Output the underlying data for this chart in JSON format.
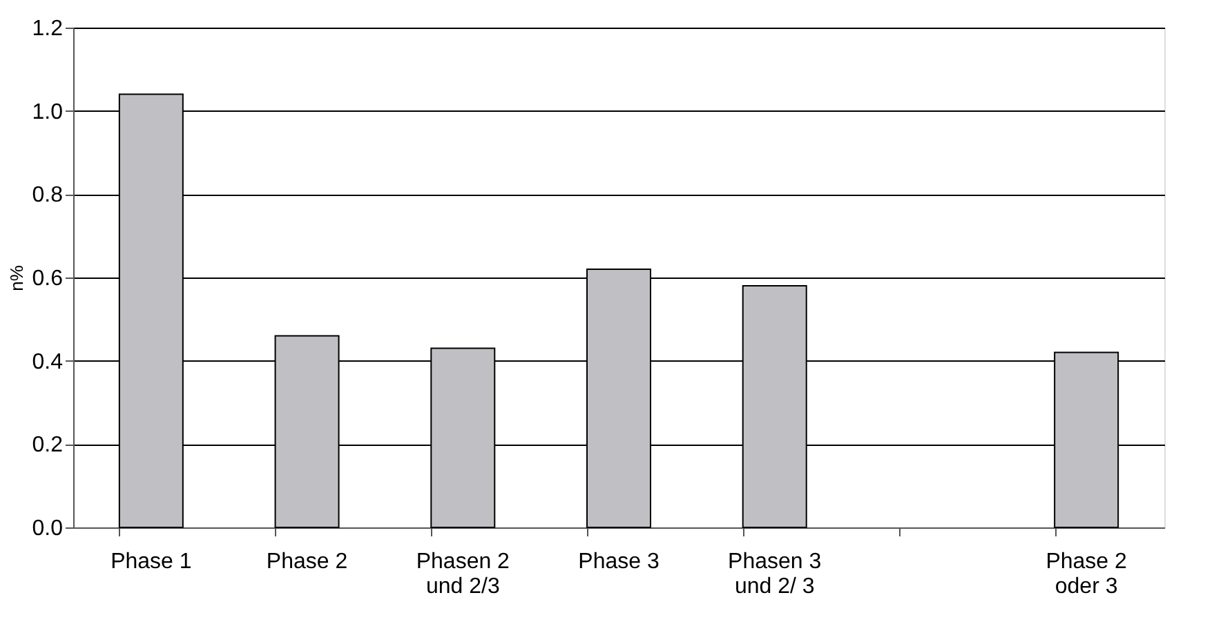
{
  "chart_data": {
    "type": "bar",
    "ylabel": "n%",
    "categories": [
      "Phase 1",
      "Phase 2",
      "Phasen 2\nund  2/3",
      "Phase 3",
      "Phasen 3\nund 2/ 3",
      null,
      "Phase 2\noder 3"
    ],
    "values": [
      1.04,
      0.46,
      0.43,
      0.62,
      0.58,
      null,
      0.42
    ],
    "color": "#c0c0c4",
    "ylim": [
      0,
      1.2
    ],
    "yticks": [
      {
        "value": 0,
        "label": "0.0"
      },
      0.2,
      0.4,
      0.6,
      0.8,
      {
        "value": 1,
        "label": "1.0"
      },
      1.2
    ],
    "grid": "y"
  }
}
